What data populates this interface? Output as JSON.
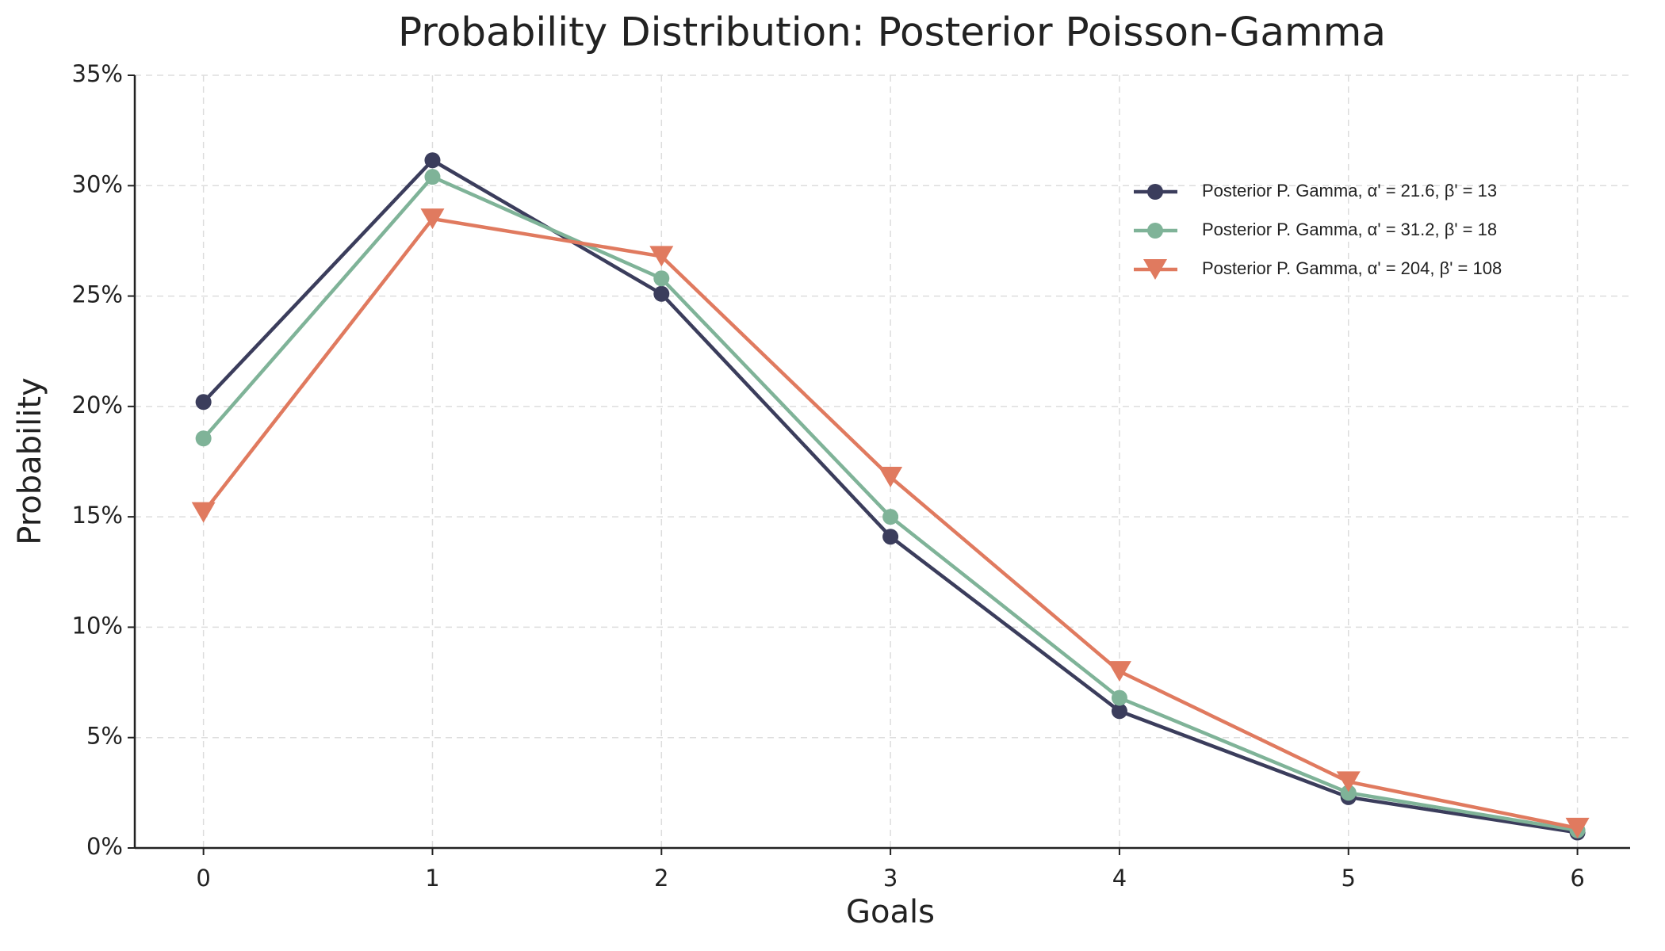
{
  "chart_data": {
    "type": "line",
    "title": "Probability Distribution: Posterior Poisson-Gamma",
    "x_label": "Goals",
    "y_label": "Probability",
    "x": [
      0,
      1,
      2,
      3,
      4,
      5,
      6
    ],
    "series": [
      {
        "name": "Posterior P. Gamma, α' = 21.6, β' = 13",
        "color": "#3b3d5c",
        "marker": "circle",
        "values": [
          20.2,
          31.15,
          25.1,
          14.1,
          6.2,
          2.3,
          0.7
        ]
      },
      {
        "name": "Posterior P. Gamma, α' = 31.2, β' = 18",
        "color": "#7fb398",
        "marker": "circle",
        "values": [
          18.55,
          30.4,
          25.8,
          15.0,
          6.8,
          2.5,
          0.8
        ]
      },
      {
        "name": "Posterior P. Gamma, α' = 204, β' = 108",
        "color": "#e07a5f",
        "marker": "triangle-down",
        "values": [
          15.2,
          28.5,
          26.8,
          16.8,
          8.0,
          3.0,
          0.9
        ]
      }
    ],
    "xlim": [
      -0.3,
      6.23
    ],
    "xticks": [
      0,
      1,
      2,
      3,
      4,
      5,
      6
    ],
    "ylim": [
      0,
      35
    ],
    "yticks": [
      {
        "value": 0,
        "label": "0%"
      },
      {
        "value": 5,
        "label": "5%"
      },
      {
        "value": 10,
        "label": "10%"
      },
      {
        "value": 15,
        "label": "15%"
      },
      {
        "value": 20,
        "label": "20%"
      },
      {
        "value": 25,
        "label": "25%"
      },
      {
        "value": 30,
        "label": "30%"
      },
      {
        "value": 35,
        "label": "35%"
      }
    ],
    "grid": true,
    "legend": "upper right"
  }
}
